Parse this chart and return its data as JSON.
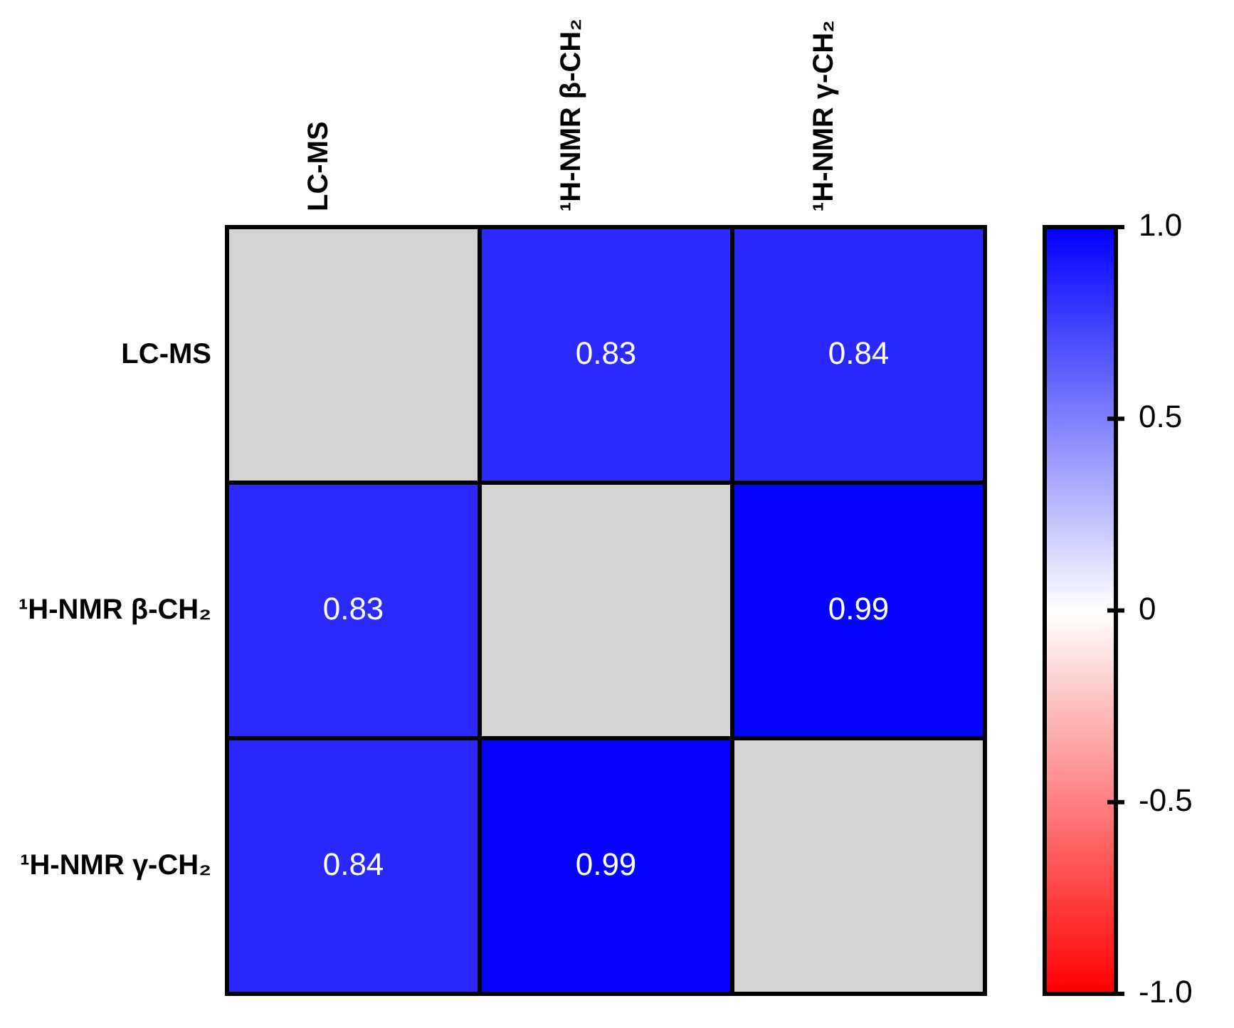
{
  "chart_data": {
    "type": "heatmap",
    "categories": [
      "LC-MS",
      "¹H-NMR β-CH₂",
      "¹H-NMR γ-CH₂"
    ],
    "y_categories": [
      "LC-MS",
      "¹H-NMR β-CH₂",
      "¹H-NMR γ-CH₂"
    ],
    "cells": [
      [
        null,
        0.83,
        0.84
      ],
      [
        0.83,
        null,
        0.99
      ],
      [
        0.84,
        0.99,
        null
      ]
    ],
    "data_labels": true,
    "clim": [
      -1,
      1
    ],
    "cticks": [
      {
        "value": 1,
        "label": "1.0"
      },
      0.5,
      0,
      -0.5,
      {
        "value": -1,
        "label": "-1.0"
      }
    ]
  }
}
